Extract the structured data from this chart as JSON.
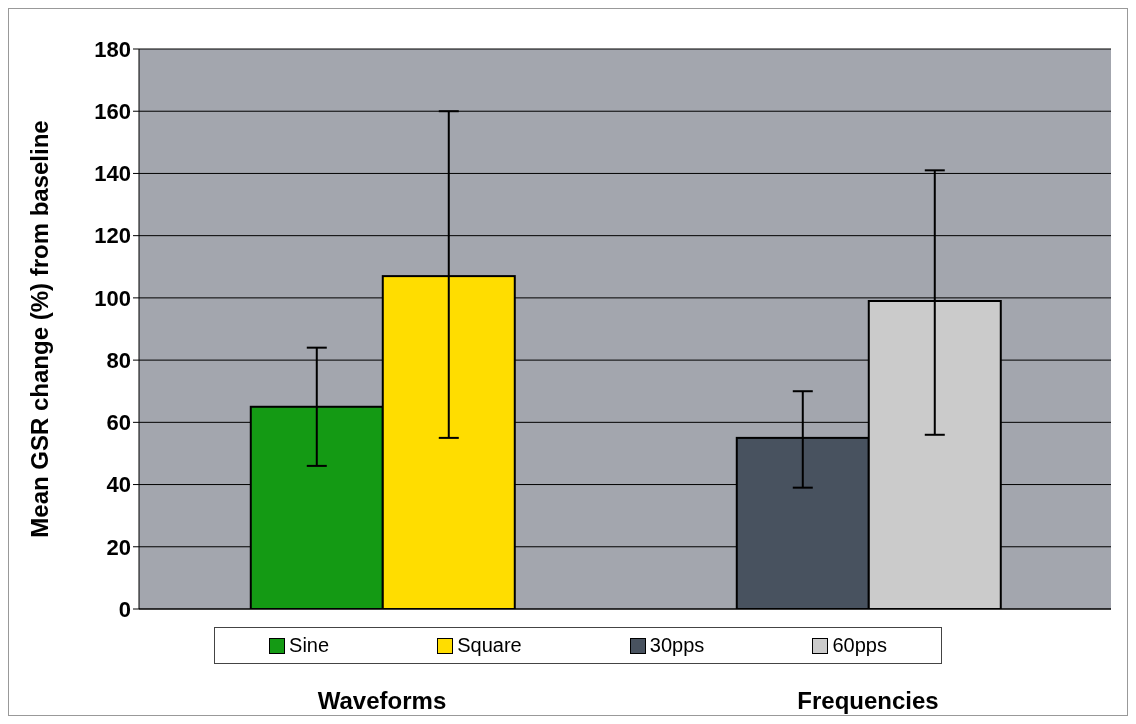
{
  "chart_data": {
    "type": "bar",
    "ylabel": "Mean GSR change (%) from baseline",
    "categories": [
      "Waveforms",
      "Frequencies"
    ],
    "series": [
      {
        "name": "Sine",
        "color": "#149a14",
        "values": [
          65,
          null
        ],
        "errors": [
          [
            46,
            84
          ],
          null
        ]
      },
      {
        "name": "Square",
        "color": "#ffdd00",
        "values": [
          107,
          null
        ],
        "errors": [
          [
            55,
            160
          ],
          null
        ]
      },
      {
        "name": "30pps",
        "color": "#48525f",
        "values": [
          null,
          55
        ],
        "errors": [
          null,
          [
            39,
            70
          ]
        ]
      },
      {
        "name": "60pps",
        "color": "#cbcbcb",
        "values": [
          null,
          99
        ],
        "errors": [
          null,
          [
            56,
            141
          ]
        ]
      }
    ],
    "ylim": [
      0,
      180
    ],
    "yticks": [
      0,
      20,
      40,
      60,
      80,
      100,
      120,
      140,
      160,
      180
    ],
    "grid": "y",
    "legend": "bottom"
  }
}
